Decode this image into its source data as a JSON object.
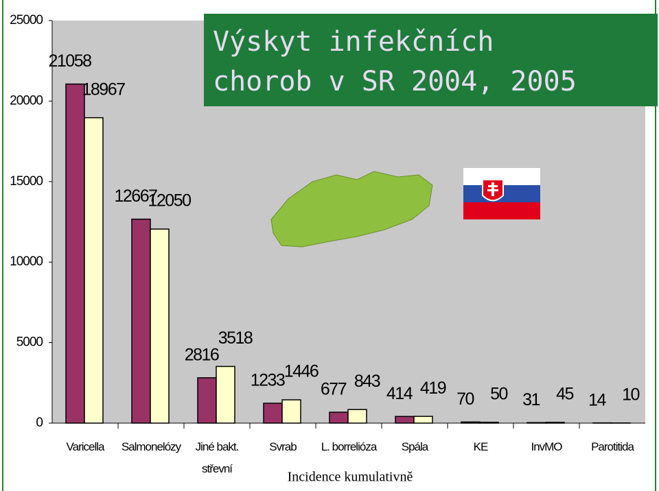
{
  "chart_data": {
    "type": "bar",
    "title": "Výskyt infekčních chorob v SR 2004, 2005",
    "x_label": "Incidence kumulativně",
    "categories": [
      "Varicella",
      "Salmonelózy",
      "Jiné bakt. střevní",
      "Svrab",
      "L. borrelióza",
      "Spála",
      "KE",
      "InvMO",
      "Parotitida"
    ],
    "series": [
      {
        "color": "#993366",
        "values": [
          21058,
          12667,
          2816,
          1233,
          677,
          414,
          70,
          31,
          14
        ]
      },
      {
        "color": "#ffffcc",
        "values": [
          18967,
          12050,
          3518,
          1446,
          843,
          419,
          50,
          45,
          10
        ]
      }
    ],
    "ylim": [
      0,
      25000
    ],
    "yticks": [
      0,
      5000,
      10000,
      15000,
      20000,
      25000
    ],
    "grid": false
  }
}
